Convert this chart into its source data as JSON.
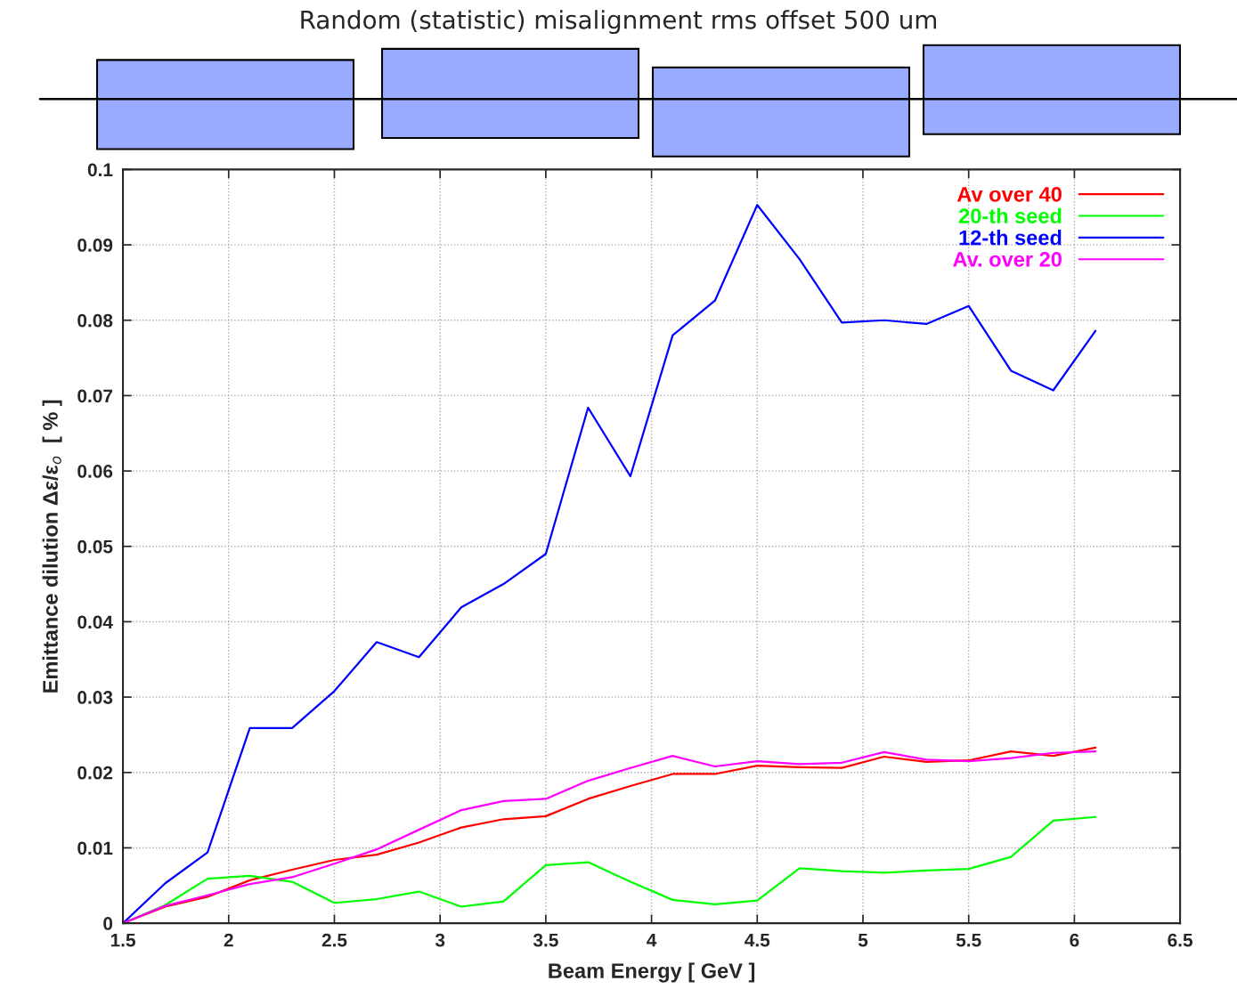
{
  "chart_data": {
    "type": "line",
    "title": "Random (statistic) misalignment rms offset 500 um",
    "xlabel": "Beam Energy [ GeV ]",
    "ylabel": "Emittance dilution Δε/ε$_{o}$  [ % ]",
    "x": [
      1.5,
      1.7,
      1.9,
      2.1,
      2.3,
      2.5,
      2.7,
      2.9,
      3.1,
      3.3,
      3.5,
      3.7,
      3.9,
      4.1,
      4.3,
      4.5,
      4.7,
      4.9,
      5.1,
      5.3,
      5.5,
      5.7,
      5.9,
      6.1
    ],
    "series": [
      {
        "name": "Av over 40",
        "color": "#ff0000",
        "values": [
          0,
          0.0022,
          0.0035,
          0.0057,
          0.0071,
          0.0084,
          0.0091,
          0.0107,
          0.0127,
          0.0138,
          0.0142,
          0.0165,
          0.0182,
          0.0198,
          0.0198,
          0.0209,
          0.0207,
          0.0206,
          0.0221,
          0.0214,
          0.0216,
          0.0228,
          0.0222,
          0.0233
        ]
      },
      {
        "name": "20-th seed",
        "color": "#00ff00",
        "values": [
          0,
          0.0024,
          0.0059,
          0.0063,
          0.0055,
          0.0027,
          0.0032,
          0.0042,
          0.0022,
          0.0029,
          0.0077,
          0.0081,
          0.0055,
          0.0031,
          0.0025,
          0.003,
          0.0073,
          0.0069,
          0.0067,
          0.007,
          0.0072,
          0.0088,
          0.0136,
          0.0141
        ]
      },
      {
        "name": "12-th seed",
        "color": "#0000ff",
        "values": [
          0,
          0.0053,
          0.0094,
          0.0259,
          0.0259,
          0.0308,
          0.0373,
          0.0353,
          0.0419,
          0.045,
          0.049,
          0.0684,
          0.0593,
          0.078,
          0.0826,
          0.0953,
          0.0881,
          0.0797,
          0.08,
          0.0795,
          0.0819,
          0.0733,
          0.0707,
          0.0786
        ]
      },
      {
        "name": "Av. over 20",
        "color": "#ff00ff",
        "values": [
          0,
          0.0023,
          0.0037,
          0.0052,
          0.0061,
          0.0079,
          0.0098,
          0.0124,
          0.015,
          0.0162,
          0.0165,
          0.0189,
          0.0206,
          0.0222,
          0.0208,
          0.0215,
          0.0211,
          0.0213,
          0.0227,
          0.0217,
          0.0215,
          0.0219,
          0.0226,
          0.0228
        ]
      }
    ],
    "xlim": [
      1.5,
      6.5
    ],
    "ylim": [
      0,
      0.1
    ],
    "xticks": [
      1.5,
      2,
      2.5,
      3,
      3.5,
      4,
      4.5,
      5,
      5.5,
      6,
      6.5
    ],
    "yticks": [
      0,
      0.01,
      0.02,
      0.03,
      0.04,
      0.05,
      0.06,
      0.07,
      0.08,
      0.09,
      0.1
    ],
    "grid": true,
    "legend": "top right",
    "line_style": "solid"
  }
}
